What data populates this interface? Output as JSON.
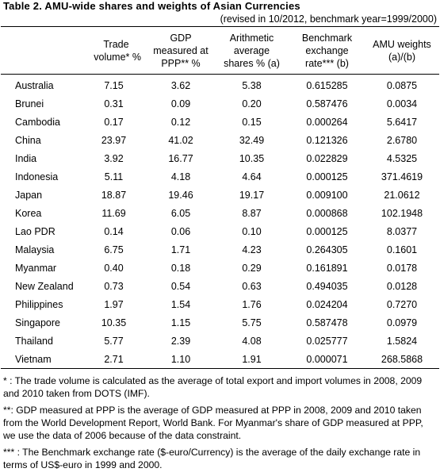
{
  "title": "Table 2. AMU-wide shares and weights of Asian Currencies",
  "subtitle": "(revised in 10/2012, benchmark year=1999/2000)",
  "columns": [
    {
      "line1": "Trade",
      "line2": "volume*  %",
      "line3": ""
    },
    {
      "line1": "GDP",
      "line2": "measured at",
      "line3": "PPP**  %"
    },
    {
      "line1": "Arithmetic",
      "line2": "average",
      "line3": "shares %  (a)"
    },
    {
      "line1": "Benchmark",
      "line2": "exchange",
      "line3": "rate***  (b)"
    },
    {
      "line1": "AMU weights",
      "line2": "(a)/(b)",
      "line3": ""
    }
  ],
  "rows": [
    {
      "country": "Australia",
      "trade": "7.15",
      "gdp": "3.62",
      "avg": "5.38",
      "rate": "0.615285",
      "weight": "0.0875"
    },
    {
      "country": "Brunei",
      "trade": "0.31",
      "gdp": "0.09",
      "avg": "0.20",
      "rate": "0.587476",
      "weight": "0.0034"
    },
    {
      "country": "Cambodia",
      "trade": "0.17",
      "gdp": "0.12",
      "avg": "0.15",
      "rate": "0.000264",
      "weight": "5.6417"
    },
    {
      "country": "China",
      "trade": "23.97",
      "gdp": "41.02",
      "avg": "32.49",
      "rate": "0.121326",
      "weight": "2.6780"
    },
    {
      "country": "India",
      "trade": "3.92",
      "gdp": "16.77",
      "avg": "10.35",
      "rate": "0.022829",
      "weight": "4.5325"
    },
    {
      "country": "Indonesia",
      "trade": "5.11",
      "gdp": "4.18",
      "avg": "4.64",
      "rate": "0.000125",
      "weight": "371.4619"
    },
    {
      "country": "Japan",
      "trade": "18.87",
      "gdp": "19.46",
      "avg": "19.17",
      "rate": "0.009100",
      "weight": "21.0612"
    },
    {
      "country": "Korea",
      "trade": "11.69",
      "gdp": "6.05",
      "avg": "8.87",
      "rate": "0.000868",
      "weight": "102.1948"
    },
    {
      "country": "Lao PDR",
      "trade": "0.14",
      "gdp": "0.06",
      "avg": "0.10",
      "rate": "0.000125",
      "weight": "8.0377"
    },
    {
      "country": "Malaysia",
      "trade": "6.75",
      "gdp": "1.71",
      "avg": "4.23",
      "rate": "0.264305",
      "weight": "0.1601"
    },
    {
      "country": "Myanmar",
      "trade": "0.40",
      "gdp": "0.18",
      "avg": "0.29",
      "rate": "0.161891",
      "weight": "0.0178"
    },
    {
      "country": "New Zealand",
      "trade": "0.73",
      "gdp": "0.54",
      "avg": "0.63",
      "rate": "0.494035",
      "weight": "0.0128"
    },
    {
      "country": "Philippines",
      "trade": "1.97",
      "gdp": "1.54",
      "avg": "1.76",
      "rate": "0.024204",
      "weight": "0.7270"
    },
    {
      "country": "Singapore",
      "trade": "10.35",
      "gdp": "1.15",
      "avg": "5.75",
      "rate": "0.587478",
      "weight": "0.0979"
    },
    {
      "country": "Thailand",
      "trade": "5.77",
      "gdp": "2.39",
      "avg": "4.08",
      "rate": "0.025777",
      "weight": "1.5824"
    },
    {
      "country": "Vietnam",
      "trade": "2.71",
      "gdp": "1.10",
      "avg": "1.91",
      "rate": "0.000071",
      "weight": "268.5868"
    }
  ],
  "notes": [
    "* : The trade volume is calculated as the average of total export and import volumes in 2008, 2009 and 2010 taken from DOTS (IMF).",
    "**: GDP measured at PPP is the average of GDP measured at PPP in 2008, 2009 and 2010 taken from the World Development Report, World Bank. For Myanmar's share of GDP measured at PPP, we use the data of 2006 because of the data constraint.",
    "*** : The Benchmark exchange rate ($-euro/Currency) is the average of the daily exchange rate in terms of US$-euro in 1999 and 2000."
  ]
}
